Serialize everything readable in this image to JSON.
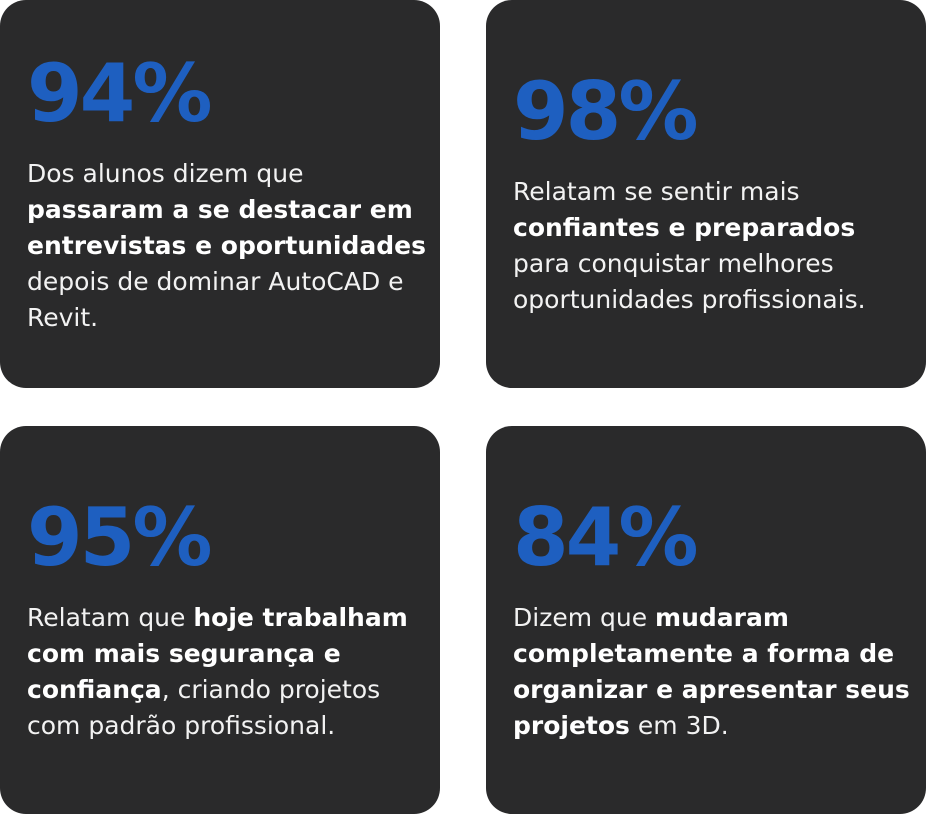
{
  "cards": [
    {
      "stat": "94%",
      "segments": [
        {
          "text": "Dos alunos dizem que ",
          "strong": false
        },
        {
          "text": "passaram a se destacar em entrevistas e oportunidades",
          "strong": true
        },
        {
          "text": " depois de dominar AutoCAD e Revit.",
          "strong": false
        }
      ]
    },
    {
      "stat": "98%",
      "segments": [
        {
          "text": "Relatam se sentir mais ",
          "strong": false
        },
        {
          "text": "confiantes e preparados",
          "strong": true
        },
        {
          "text": " para conquistar melhores oportunidades profissionais.",
          "strong": false
        }
      ]
    },
    {
      "stat": "95%",
      "segments": [
        {
          "text": "Relatam que ",
          "strong": false
        },
        {
          "text": "hoje trabalham com mais segurança e confiança",
          "strong": true
        },
        {
          "text": ", criando projetos com padrão profissional.",
          "strong": false
        }
      ]
    },
    {
      "stat": "84%",
      "segments": [
        {
          "text": "Dizem que ",
          "strong": false
        },
        {
          "text": "mudaram completamente a forma de organizar e apresentar seus projetos",
          "strong": true
        },
        {
          "text": " em 3D.",
          "strong": false
        }
      ]
    }
  ]
}
